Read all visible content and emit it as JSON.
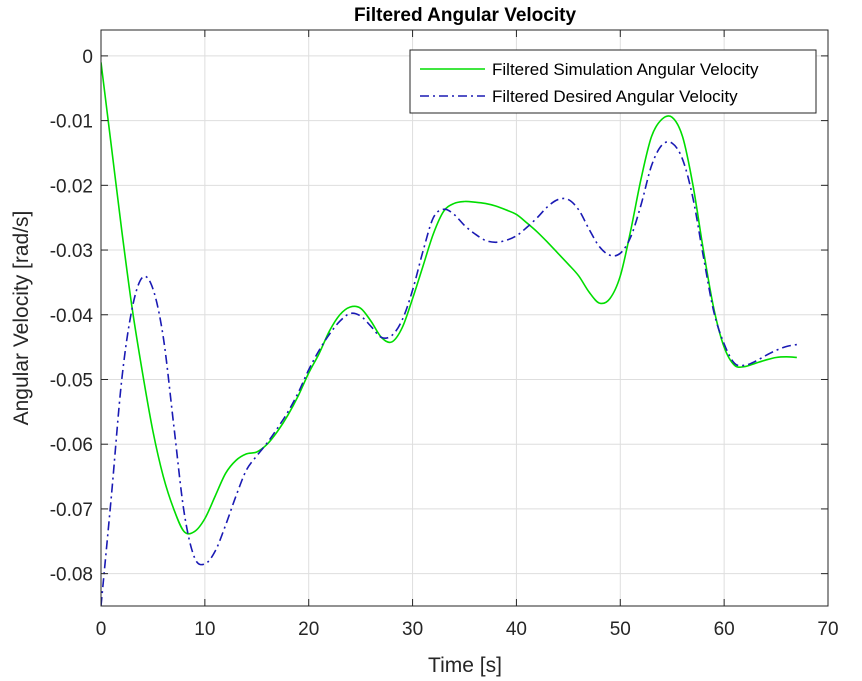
{
  "chart_data": {
    "type": "line",
    "title": "Filtered Angular Velocity",
    "xlabel": "Time [s]",
    "ylabel": "Angular Velocity [rad/s]",
    "xlim": [
      0,
      70
    ],
    "ylim": [
      -0.085,
      0.004
    ],
    "xticks": [
      0,
      10,
      20,
      30,
      40,
      50,
      60,
      70
    ],
    "yticks": [
      0,
      -0.01,
      -0.02,
      -0.03,
      -0.04,
      -0.05,
      -0.06,
      -0.07,
      -0.08
    ],
    "xtick_labels": [
      "0",
      "10",
      "20",
      "30",
      "40",
      "50",
      "60",
      "70"
    ],
    "ytick_labels": [
      "0",
      "-0.01",
      "-0.02",
      "-0.03",
      "-0.04",
      "-0.05",
      "-0.06",
      "-0.07",
      "-0.08"
    ],
    "grid": true,
    "legend_position": "top-right",
    "series": [
      {
        "name": "Filtered Simulation Angular Velocity",
        "color": "#00dd00",
        "style": "solid",
        "x": [
          0,
          1,
          2,
          3,
          4,
          5,
          6,
          7,
          8,
          9,
          10,
          11,
          12,
          13,
          14,
          15,
          16,
          17,
          18,
          19,
          20,
          21,
          22,
          23,
          24,
          25,
          26,
          27,
          28,
          29,
          30,
          31,
          32,
          33,
          34,
          35,
          36,
          37,
          38,
          39,
          40,
          41,
          42,
          43,
          44,
          45,
          46,
          47,
          48,
          49,
          50,
          51,
          52,
          53,
          54,
          55,
          56,
          57,
          58,
          59,
          60,
          61,
          62,
          63,
          64,
          65,
          66,
          67
        ],
        "y": [
          -0.001,
          -0.014,
          -0.027,
          -0.039,
          -0.049,
          -0.058,
          -0.065,
          -0.07,
          -0.0735,
          -0.0735,
          -0.0715,
          -0.068,
          -0.0645,
          -0.0625,
          -0.0615,
          -0.0612,
          -0.06,
          -0.058,
          -0.0555,
          -0.0525,
          -0.049,
          -0.046,
          -0.0425,
          -0.04,
          -0.0388,
          -0.039,
          -0.041,
          -0.0435,
          -0.0442,
          -0.042,
          -0.0375,
          -0.0325,
          -0.0275,
          -0.024,
          -0.0228,
          -0.0225,
          -0.0226,
          -0.0228,
          -0.0232,
          -0.0238,
          -0.0245,
          -0.0258,
          -0.0272,
          -0.0288,
          -0.0305,
          -0.0322,
          -0.034,
          -0.0365,
          -0.0382,
          -0.0375,
          -0.034,
          -0.027,
          -0.019,
          -0.0125,
          -0.0098,
          -0.0095,
          -0.0125,
          -0.02,
          -0.03,
          -0.039,
          -0.045,
          -0.0478,
          -0.048,
          -0.0475,
          -0.047,
          -0.0466,
          -0.0465,
          -0.0466
        ]
      },
      {
        "name": "Filtered Desired Angular Velocity",
        "color": "#1a1ab4",
        "style": "dash-dot",
        "x": [
          0,
          1,
          2,
          3,
          4,
          5,
          6,
          7,
          8,
          9,
          10,
          11,
          12,
          13,
          14,
          15,
          16,
          17,
          18,
          19,
          20,
          21,
          22,
          23,
          24,
          25,
          26,
          27,
          28,
          29,
          30,
          31,
          32,
          33,
          34,
          35,
          36,
          37,
          38,
          39,
          40,
          41,
          42,
          43,
          44,
          45,
          46,
          47,
          48,
          49,
          50,
          51,
          52,
          53,
          54,
          55,
          56,
          57,
          58,
          59,
          60,
          61,
          62,
          63,
          64,
          65,
          66,
          67
        ],
        "y": [
          -0.085,
          -0.068,
          -0.05,
          -0.039,
          -0.0342,
          -0.036,
          -0.0435,
          -0.057,
          -0.0705,
          -0.0775,
          -0.0785,
          -0.0765,
          -0.0725,
          -0.068,
          -0.064,
          -0.0618,
          -0.0598,
          -0.0575,
          -0.055,
          -0.052,
          -0.0485,
          -0.0455,
          -0.043,
          -0.041,
          -0.0398,
          -0.0402,
          -0.0418,
          -0.0435,
          -0.0432,
          -0.0408,
          -0.0362,
          -0.0302,
          -0.025,
          -0.0237,
          -0.0245,
          -0.0262,
          -0.0275,
          -0.0285,
          -0.0288,
          -0.0285,
          -0.0278,
          -0.0265,
          -0.025,
          -0.0233,
          -0.0222,
          -0.0222,
          -0.0238,
          -0.0268,
          -0.0295,
          -0.0308,
          -0.0305,
          -0.028,
          -0.023,
          -0.017,
          -0.0138,
          -0.0135,
          -0.016,
          -0.022,
          -0.031,
          -0.0395,
          -0.0445,
          -0.0475,
          -0.0478,
          -0.0472,
          -0.0463,
          -0.0455,
          -0.0449,
          -0.0446
        ]
      }
    ]
  }
}
